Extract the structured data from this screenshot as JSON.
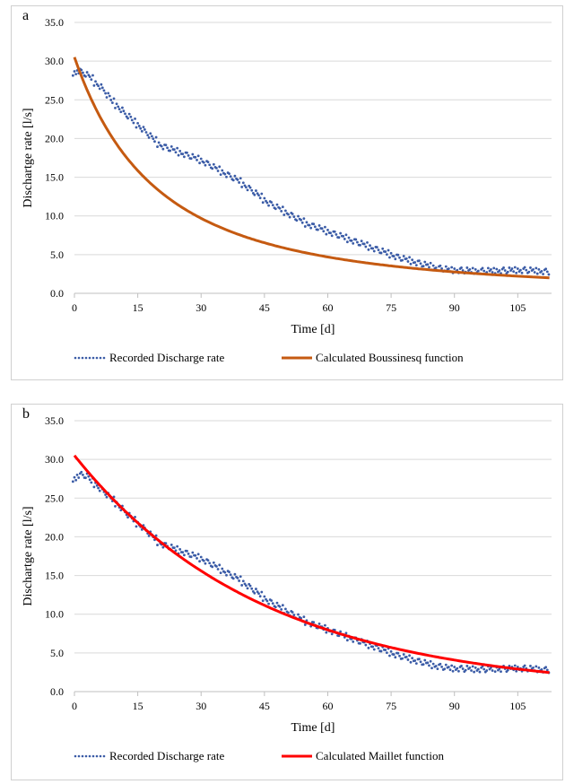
{
  "chart_data": [
    {
      "panel_label": "a",
      "type": "scatter",
      "xlabel": "Time [d]",
      "ylabel": "Dischartge rate [l/s]",
      "xlim": [
        0,
        113
      ],
      "ylim": [
        0,
        35
      ],
      "xticks": [
        "0",
        "15",
        "30",
        "45",
        "60",
        "75",
        "90",
        "105"
      ],
      "yticks": [
        "0.0",
        "5.0",
        "10.0",
        "15.0",
        "20.0",
        "25.0",
        "30.0",
        "35.0"
      ],
      "grid": "horizontal",
      "legend_position": "bottom",
      "series": [
        {
          "name": "Recorded Discharge rate",
          "style": "dotted",
          "color": "#3a5ba6",
          "x": [
            0,
            1,
            2,
            3,
            4,
            5,
            6,
            7,
            8,
            9,
            10,
            11,
            12,
            13,
            14,
            15,
            16,
            17,
            18,
            19,
            20,
            21,
            22,
            23,
            24,
            25,
            26,
            27,
            28,
            29,
            30,
            31,
            32,
            33,
            34,
            35,
            36,
            37,
            38,
            39,
            40,
            41,
            42,
            43,
            44,
            45,
            46,
            47,
            48,
            49,
            50,
            51,
            52,
            53,
            54,
            55,
            56,
            57,
            58,
            59,
            60,
            61,
            62,
            63,
            64,
            65,
            66,
            67,
            68,
            69,
            70,
            71,
            72,
            73,
            74,
            75,
            76,
            77,
            78,
            79,
            80,
            81,
            82,
            83,
            84,
            85,
            86,
            87,
            88,
            89,
            90,
            91,
            92,
            93,
            94,
            95,
            96,
            97,
            98,
            99,
            100,
            101,
            102,
            103,
            104,
            105,
            106,
            107,
            108,
            109,
            110,
            111,
            112
          ],
          "y": [
            28.5,
            28.8,
            28.5,
            28.2,
            27.8,
            27.2,
            26.8,
            26.2,
            25.5,
            24.8,
            24.3,
            23.8,
            23.2,
            22.8,
            22.2,
            21.8,
            21.3,
            20.8,
            20.3,
            19.8,
            19.3,
            19.0,
            18.8,
            18.6,
            18.4,
            18.2,
            18.0,
            17.8,
            17.6,
            17.4,
            17.2,
            16.9,
            16.6,
            16.3,
            16.0,
            15.7,
            15.4,
            15.1,
            14.8,
            14.5,
            14.1,
            13.7,
            13.3,
            12.9,
            12.5,
            12.1,
            11.7,
            11.4,
            11.1,
            10.8,
            10.5,
            10.2,
            9.9,
            9.6,
            9.3,
            9.0,
            8.8,
            8.6,
            8.4,
            8.2,
            8.0,
            7.8,
            7.6,
            7.4,
            7.2,
            7.0,
            6.8,
            6.6,
            6.4,
            6.2,
            6.0,
            5.8,
            5.6,
            5.4,
            5.2,
            5.0,
            4.8,
            4.6,
            4.45,
            4.3,
            4.15,
            4.0,
            3.85,
            3.7,
            3.55,
            3.4,
            3.3,
            3.2,
            3.1,
            3.0,
            3.0,
            3.0,
            2.95,
            2.95,
            2.9,
            2.9,
            2.9,
            2.9,
            2.9,
            2.9,
            2.95,
            2.95,
            2.95,
            2.95,
            3.0,
            3.0,
            3.0,
            3.0,
            2.95,
            2.9,
            2.9,
            2.85,
            2.8
          ]
        },
        {
          "name": "Calculated Boussinesq function",
          "style": "line",
          "color": "#c55a11",
          "model": "boussinesq",
          "q0": 30.5,
          "alpha": 0.0258
        }
      ]
    },
    {
      "panel_label": "b",
      "type": "scatter",
      "xlabel": "Time [d]",
      "ylabel": "Dischartge rate [l/s]",
      "xlim": [
        0,
        113
      ],
      "ylim": [
        0,
        35
      ],
      "xticks": [
        "0",
        "15",
        "30",
        "45",
        "60",
        "75",
        "90",
        "105"
      ],
      "yticks": [
        "0.0",
        "5.0",
        "10.0",
        "15.0",
        "20.0",
        "25.0",
        "30.0",
        "35.0"
      ],
      "grid": "horizontal",
      "legend_position": "bottom",
      "series": [
        {
          "name": "Recorded Discharge rate",
          "style": "dotted",
          "color": "#3a5ba6",
          "x": [
            0,
            1,
            2,
            3,
            4,
            5,
            6,
            7,
            8,
            9,
            10,
            11,
            12,
            13,
            14,
            15,
            16,
            17,
            18,
            19,
            20,
            21,
            22,
            23,
            24,
            25,
            26,
            27,
            28,
            29,
            30,
            31,
            32,
            33,
            34,
            35,
            36,
            37,
            38,
            39,
            40,
            41,
            42,
            43,
            44,
            45,
            46,
            47,
            48,
            49,
            50,
            51,
            52,
            53,
            54,
            55,
            56,
            57,
            58,
            59,
            60,
            61,
            62,
            63,
            64,
            65,
            66,
            67,
            68,
            69,
            70,
            71,
            72,
            73,
            74,
            75,
            76,
            77,
            78,
            79,
            80,
            81,
            82,
            83,
            84,
            85,
            86,
            87,
            88,
            89,
            90,
            91,
            92,
            93,
            94,
            95,
            96,
            97,
            98,
            99,
            100,
            101,
            102,
            103,
            104,
            105,
            106,
            107,
            108,
            109,
            110,
            111,
            112
          ],
          "y": [
            27.5,
            28.0,
            28.0,
            27.8,
            27.2,
            26.8,
            26.3,
            25.8,
            25.3,
            24.8,
            24.3,
            23.8,
            23.2,
            22.7,
            22.2,
            21.7,
            21.3,
            20.8,
            20.3,
            19.8,
            19.3,
            19.0,
            18.8,
            18.6,
            18.4,
            18.2,
            18.0,
            17.8,
            17.6,
            17.4,
            17.2,
            16.9,
            16.6,
            16.3,
            16.0,
            15.7,
            15.4,
            15.1,
            14.8,
            14.5,
            14.1,
            13.7,
            13.3,
            12.9,
            12.5,
            12.1,
            11.7,
            11.4,
            11.1,
            10.8,
            10.5,
            10.2,
            9.9,
            9.6,
            9.3,
            9.0,
            8.8,
            8.6,
            8.4,
            8.2,
            8.0,
            7.8,
            7.6,
            7.4,
            7.2,
            7.0,
            6.8,
            6.6,
            6.4,
            6.2,
            6.0,
            5.8,
            5.6,
            5.4,
            5.2,
            5.0,
            4.8,
            4.6,
            4.45,
            4.3,
            4.15,
            4.0,
            3.85,
            3.7,
            3.55,
            3.4,
            3.3,
            3.2,
            3.1,
            3.0,
            3.0,
            3.0,
            2.95,
            2.95,
            2.9,
            2.9,
            2.9,
            2.9,
            2.9,
            2.9,
            2.95,
            2.95,
            2.95,
            2.95,
            3.0,
            3.0,
            3.0,
            3.0,
            2.95,
            2.9,
            2.9,
            2.85,
            2.8
          ]
        },
        {
          "name": "Calculated Maillet function",
          "style": "line",
          "color": "#ff0000",
          "model": "maillet",
          "q0": 30.5,
          "alpha": 0.02236
        }
      ]
    }
  ]
}
